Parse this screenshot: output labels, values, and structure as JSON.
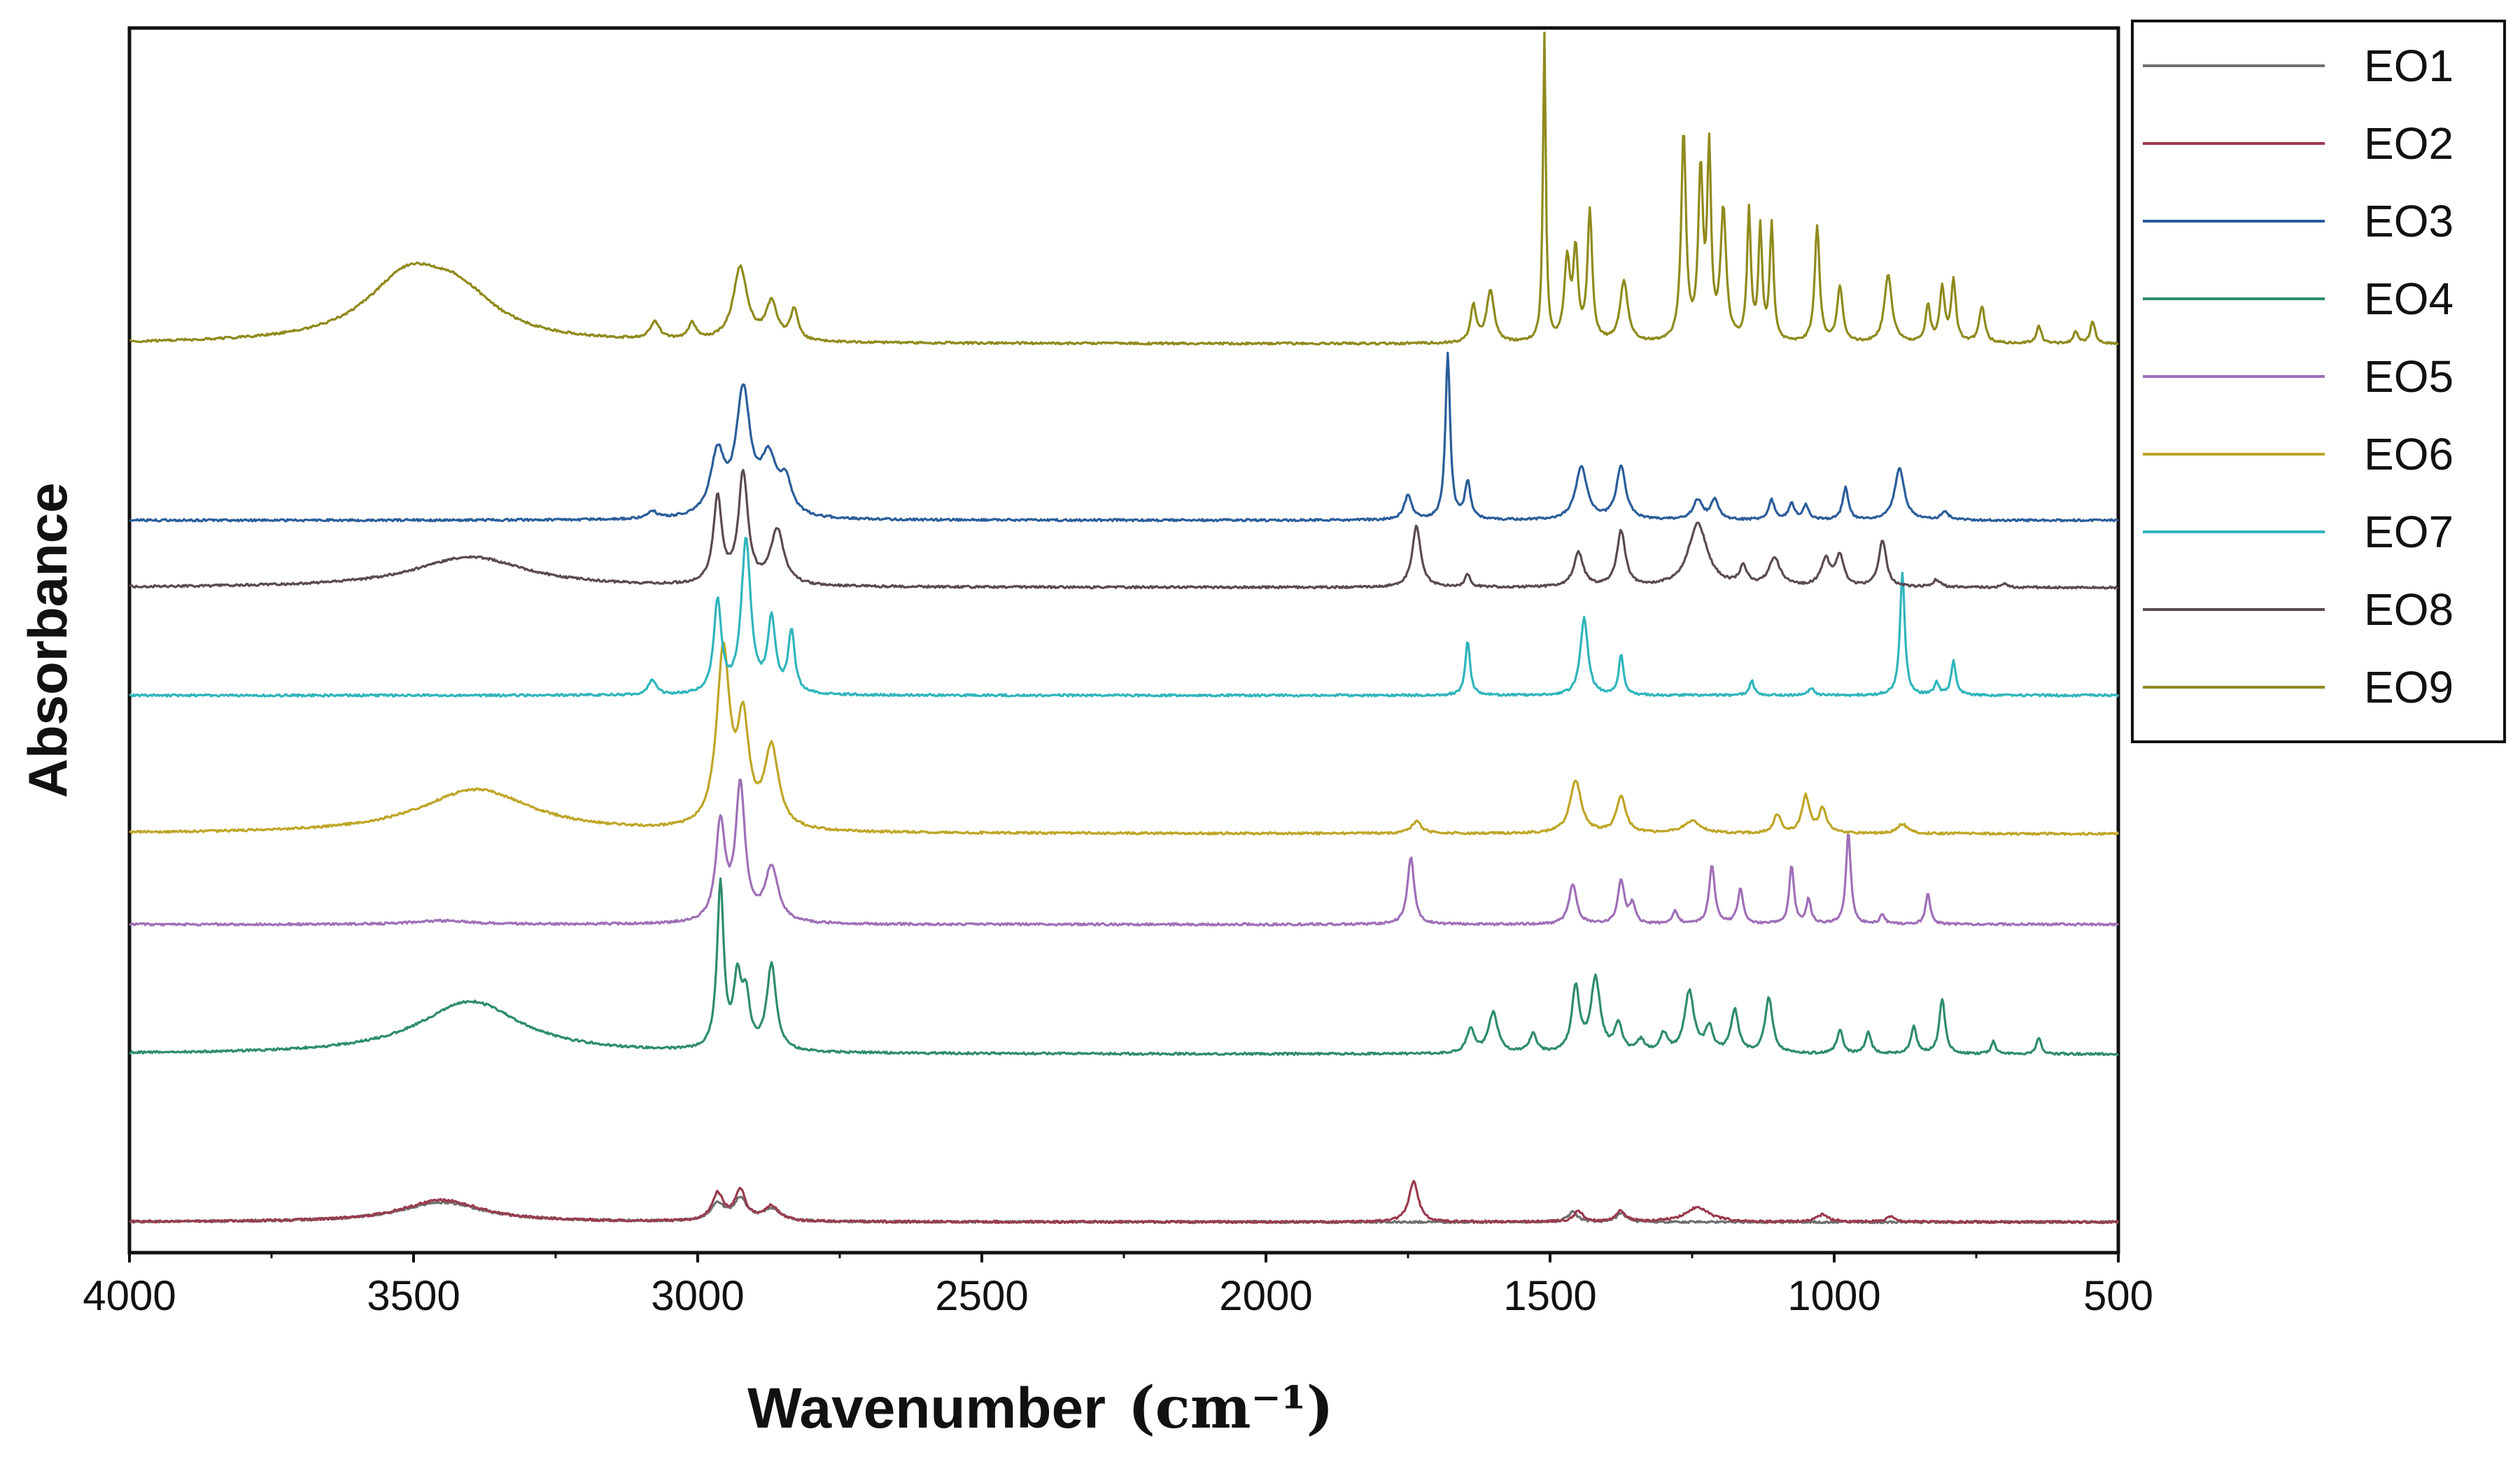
{
  "chart_data": {
    "type": "line",
    "title": "",
    "xlabel": "Wavenumber",
    "xlabel_unit": "(cm⁻¹)",
    "ylabel": "Absorbance",
    "xlim": [
      4000,
      500
    ],
    "x_reversed": true,
    "ylim": [
      0,
      100
    ],
    "y_ticks_labeled": false,
    "grid": false,
    "legend_position": "right-top",
    "x_ticks": [
      {
        "value": 4000,
        "label": "4000"
      },
      {
        "value": 3500,
        "label": "3500"
      },
      {
        "value": 3000,
        "label": "3000"
      },
      {
        "value": 2500,
        "label": "2500"
      },
      {
        "value": 2000,
        "label": "2000"
      },
      {
        "value": 1500,
        "label": "1500"
      },
      {
        "value": 1000,
        "label": "1000"
      },
      {
        "value": 500,
        "label": "500"
      }
    ],
    "series": [
      {
        "name": "EO1",
        "color": "#6f6f6f",
        "baseline": 2.5,
        "peaks": [
          [
            3450,
            1.6,
            90
          ],
          [
            2965,
            1.4,
            14
          ],
          [
            2925,
            1.8,
            14
          ],
          [
            2870,
            1.0,
            18
          ],
          [
            1460,
            0.8,
            10
          ],
          [
            1375,
            0.7,
            10
          ]
        ]
      },
      {
        "name": "EO2",
        "color": "#9a3b4f",
        "baseline": 2.5,
        "peaks": [
          [
            3450,
            1.8,
            85
          ],
          [
            2965,
            2.2,
            12
          ],
          [
            2925,
            2.4,
            12
          ],
          [
            2870,
            1.2,
            16
          ],
          [
            1740,
            3.3,
            10
          ],
          [
            1450,
            0.9,
            10
          ],
          [
            1375,
            0.9,
            10
          ],
          [
            1240,
            1.2,
            25
          ],
          [
            1020,
            0.6,
            12
          ],
          [
            900,
            0.4,
            10
          ]
        ]
      },
      {
        "name": "EO3",
        "color": "#2a5d9a",
        "baseline": 59.8,
        "peaks": [
          [
            3080,
            0.6,
            10
          ],
          [
            2965,
            5.0,
            15
          ],
          [
            2920,
            10.0,
            15
          ],
          [
            2875,
            4.5,
            18
          ],
          [
            2845,
            2.5,
            12
          ],
          [
            1750,
            2.0,
            8
          ],
          [
            1680,
            13.5,
            5
          ],
          [
            1645,
            3.0,
            6
          ],
          [
            1445,
            4.3,
            12
          ],
          [
            1375,
            4.3,
            10
          ],
          [
            1240,
            1.6,
            10
          ],
          [
            1210,
            1.6,
            8
          ],
          [
            1110,
            1.6,
            6
          ],
          [
            1075,
            1.3,
            6
          ],
          [
            1050,
            1.2,
            6
          ],
          [
            980,
            2.6,
            6
          ],
          [
            885,
            4.3,
            10
          ],
          [
            805,
            0.6,
            8
          ]
        ]
      },
      {
        "name": "EO4",
        "color": "#2e8c6e",
        "baseline": 16.2,
        "peaks": [
          [
            3400,
            4.3,
            110
          ],
          [
            2960,
            13.5,
            7
          ],
          [
            2930,
            5.5,
            8
          ],
          [
            2915,
            4.0,
            8
          ],
          [
            2870,
            7.0,
            10
          ],
          [
            1640,
            2.0,
            8
          ],
          [
            1600,
            3.3,
            10
          ],
          [
            1530,
            1.5,
            8
          ],
          [
            1455,
            5.3,
            8
          ],
          [
            1420,
            6.0,
            10
          ],
          [
            1380,
            2.3,
            8
          ],
          [
            1340,
            1.0,
            8
          ],
          [
            1300,
            1.5,
            8
          ],
          [
            1255,
            5.0,
            10
          ],
          [
            1220,
            2.0,
            8
          ],
          [
            1175,
            3.5,
            8
          ],
          [
            1115,
            4.5,
            8
          ],
          [
            990,
            2.0,
            6
          ],
          [
            940,
            1.7,
            6
          ],
          [
            860,
            2.2,
            6
          ],
          [
            810,
            4.5,
            6
          ],
          [
            720,
            1.0,
            5
          ],
          [
            640,
            1.3,
            5
          ]
        ]
      },
      {
        "name": "EO5",
        "color": "#9f6fb8",
        "baseline": 26.8,
        "peaks": [
          [
            3450,
            0.3,
            60
          ],
          [
            2960,
            8.0,
            10
          ],
          [
            2925,
            11.0,
            10
          ],
          [
            2870,
            4.5,
            14
          ],
          [
            1745,
            5.5,
            7
          ],
          [
            1460,
            3.3,
            8
          ],
          [
            1375,
            3.5,
            7
          ],
          [
            1355,
            1.6,
            6
          ],
          [
            1280,
            1.0,
            6
          ],
          [
            1215,
            4.8,
            6
          ],
          [
            1165,
            2.8,
            6
          ],
          [
            1075,
            4.8,
            5
          ],
          [
            1045,
            2.0,
            5
          ],
          [
            975,
            7.5,
            5
          ],
          [
            915,
            0.8,
            5
          ],
          [
            835,
            2.5,
            5
          ]
        ]
      },
      {
        "name": "EO6",
        "color": "#bfa526",
        "baseline": 34.2,
        "peaks": [
          [
            3390,
            3.6,
            120
          ],
          [
            2955,
            14.3,
            14
          ],
          [
            2920,
            8.0,
            12
          ],
          [
            2870,
            6.5,
            15
          ],
          [
            1735,
            1.0,
            10
          ],
          [
            1455,
            4.3,
            12
          ],
          [
            1375,
            3.0,
            10
          ],
          [
            1250,
            1.0,
            18
          ],
          [
            1100,
            1.5,
            8
          ],
          [
            1050,
            3.0,
            8
          ],
          [
            1020,
            2.0,
            8
          ],
          [
            880,
            0.8,
            10
          ]
        ]
      },
      {
        "name": "EO7",
        "color": "#2fb5bc",
        "baseline": 45.5,
        "peaks": [
          [
            3080,
            1.2,
            8
          ],
          [
            2965,
            7.5,
            8
          ],
          [
            2915,
            12.5,
            10
          ],
          [
            2870,
            6.0,
            8
          ],
          [
            2835,
            5.0,
            7
          ],
          [
            1645,
            4.5,
            5
          ],
          [
            1440,
            6.3,
            8
          ],
          [
            1375,
            3.3,
            5
          ],
          [
            1145,
            1.2,
            5
          ],
          [
            1040,
            0.6,
            6
          ],
          [
            880,
            10.0,
            5
          ],
          [
            820,
            1.0,
            5
          ],
          [
            790,
            2.8,
            5
          ]
        ]
      },
      {
        "name": "EO8",
        "color": "#5a4a52",
        "baseline": 54.3,
        "peaks": [
          [
            3400,
            2.5,
            120
          ],
          [
            2965,
            7.0,
            9
          ],
          [
            2920,
            9.0,
            10
          ],
          [
            2860,
            4.5,
            14
          ],
          [
            1735,
            5.0,
            9
          ],
          [
            1645,
            1.0,
            6
          ],
          [
            1450,
            2.8,
            10
          ],
          [
            1375,
            4.5,
            9
          ],
          [
            1240,
            5.2,
            20
          ],
          [
            1160,
            1.5,
            8
          ],
          [
            1105,
            2.3,
            12
          ],
          [
            1015,
            2.2,
            10
          ],
          [
            990,
            2.5,
            8
          ],
          [
            915,
            3.8,
            8
          ],
          [
            820,
            0.6,
            8
          ],
          [
            700,
            0.3,
            6
          ]
        ]
      },
      {
        "name": "EO9",
        "color": "#8f8a1c",
        "baseline": 74.2,
        "peaks": [
          [
            3510,
            5.1,
            90
          ],
          [
            3420,
            3.0,
            80
          ],
          [
            3075,
            1.4,
            10
          ],
          [
            3010,
            1.3,
            8
          ],
          [
            2925,
            6.0,
            15
          ],
          [
            2870,
            3.0,
            12
          ],
          [
            2830,
            2.5,
            8
          ],
          [
            1635,
            3.0,
            6
          ],
          [
            1605,
            4.3,
            8
          ],
          [
            1510,
            25.0,
            3
          ],
          [
            1470,
            6.5,
            6
          ],
          [
            1455,
            7.0,
            5
          ],
          [
            1430,
            10.5,
            5
          ],
          [
            1370,
            5.0,
            8
          ],
          [
            1265,
            17.0,
            5
          ],
          [
            1235,
            13.5,
            5
          ],
          [
            1220,
            15.0,
            4
          ],
          [
            1195,
            10.5,
            6
          ],
          [
            1150,
            10.5,
            4
          ],
          [
            1130,
            9.0,
            4
          ],
          [
            1110,
            9.5,
            4
          ],
          [
            1030,
            9.5,
            5
          ],
          [
            990,
            4.5,
            6
          ],
          [
            905,
            5.5,
            8
          ],
          [
            835,
            3.0,
            5
          ],
          [
            810,
            4.5,
            5
          ],
          [
            790,
            5.0,
            5
          ],
          [
            740,
            3.0,
            6
          ],
          [
            640,
            1.5,
            5
          ],
          [
            575,
            1.0,
            5
          ],
          [
            545,
            1.8,
            5
          ]
        ]
      }
    ]
  }
}
